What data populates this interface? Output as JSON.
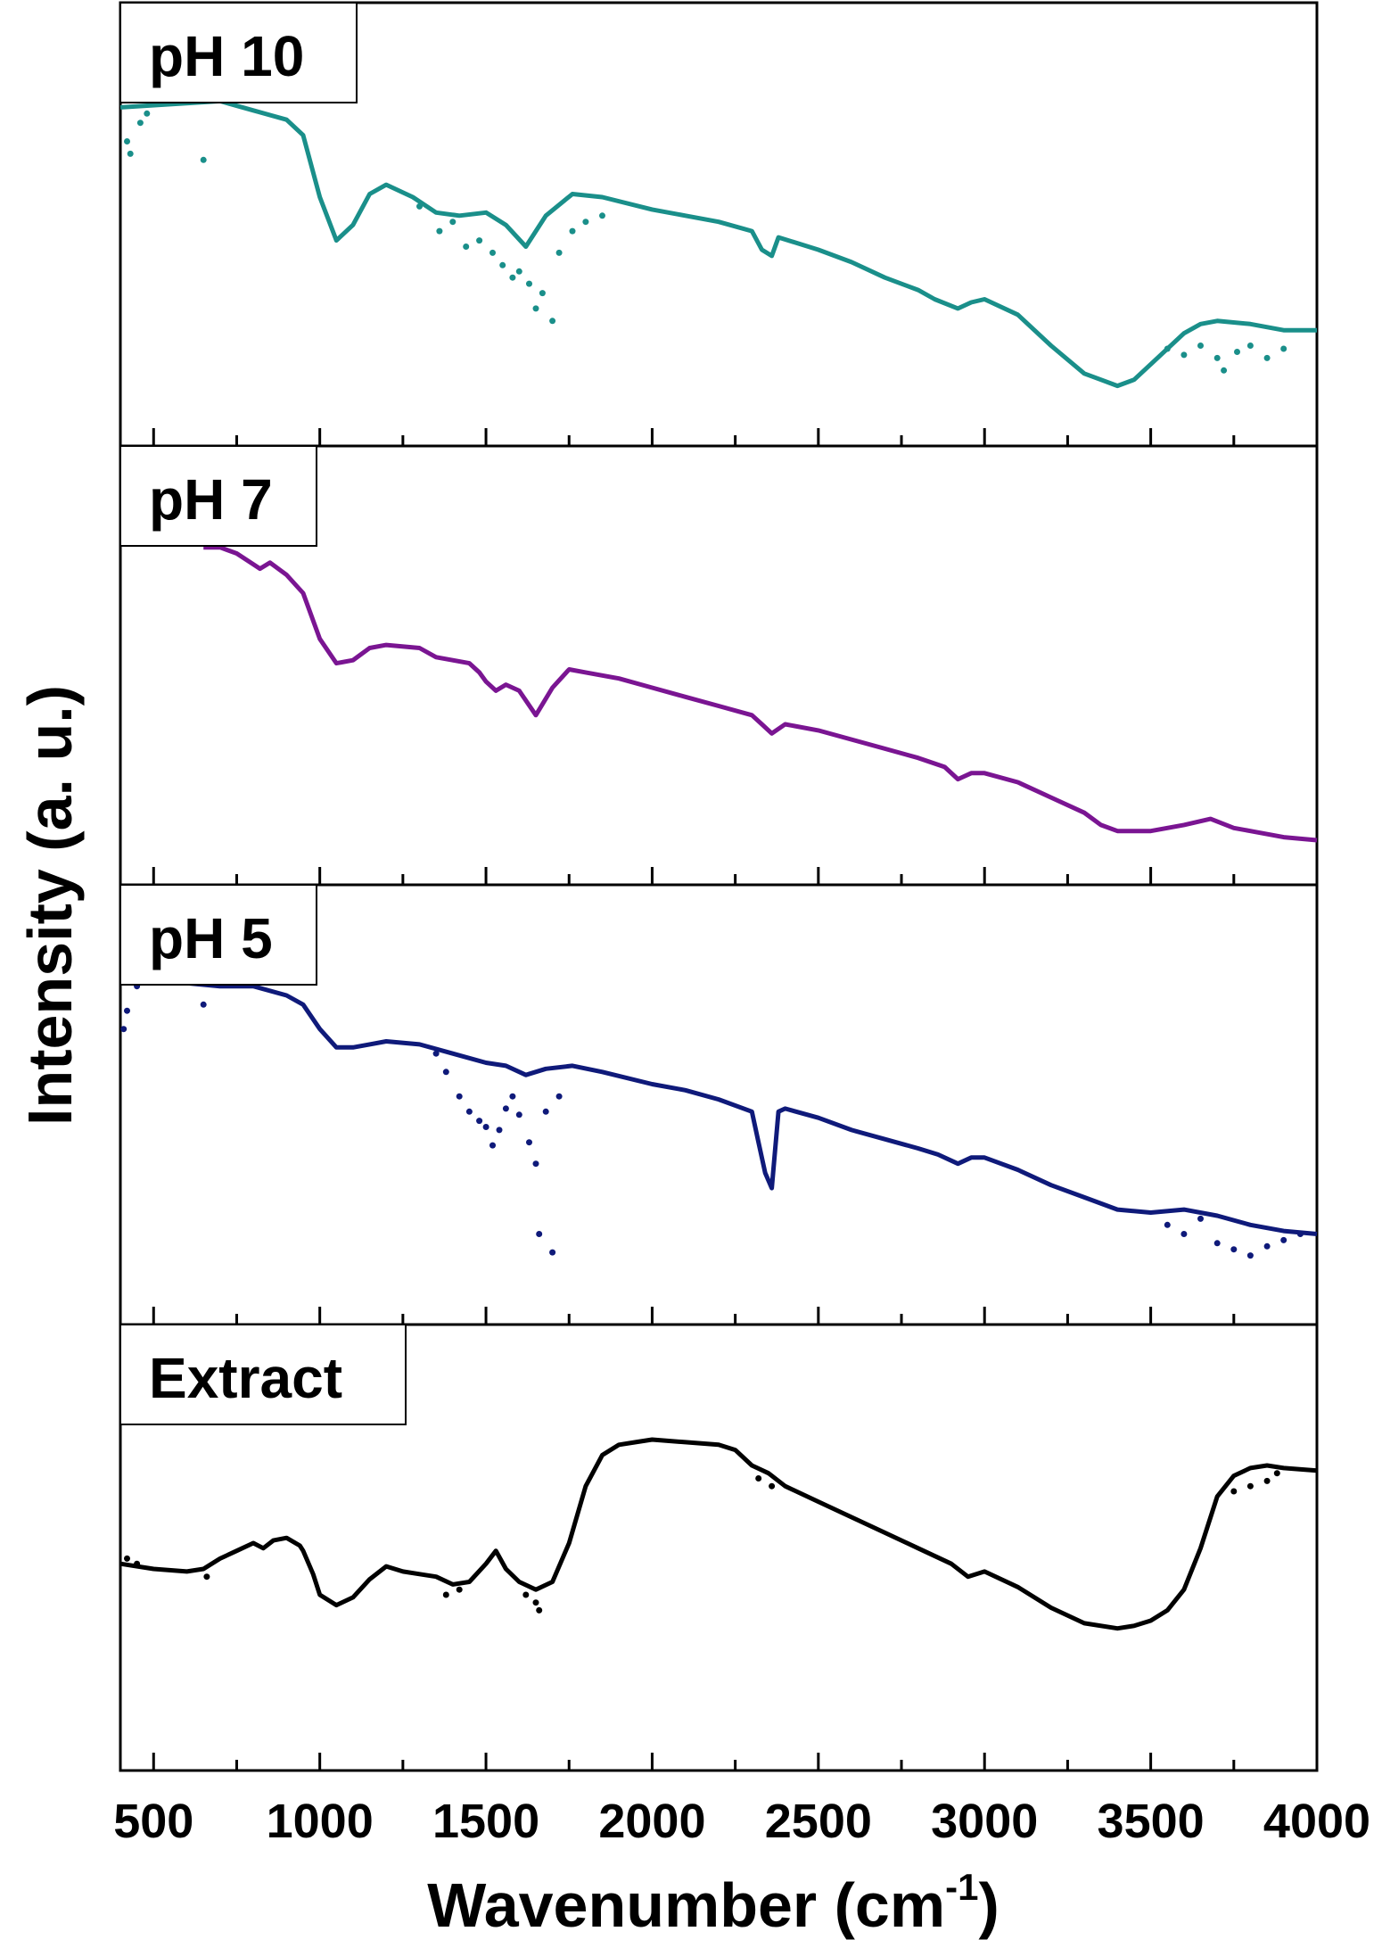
{
  "chart_data": {
    "type": "line",
    "xlabel": "Wavenumber (cm",
    "xlabel_sup": "-1",
    "xlabel_close": ")",
    "ylabel": "Intensity (a. u.)",
    "xlim": [
      400,
      4000
    ],
    "x_ticks": [
      500,
      1000,
      1500,
      2000,
      2500,
      3000,
      3500,
      4000
    ],
    "x_tick_labels": [
      "500",
      "1000",
      "1500",
      "2000",
      "2500",
      "3000",
      "3500",
      "4000"
    ],
    "panels": [
      {
        "name": "pH 10",
        "color": "#1a8f8a",
        "ylim": [
          0,
          100
        ],
        "points": [
          [
            400,
            95
          ],
          [
            550,
            96
          ],
          [
            700,
            97
          ],
          [
            800,
            94
          ],
          [
            900,
            91
          ],
          [
            950,
            86
          ],
          [
            1000,
            66
          ],
          [
            1050,
            52
          ],
          [
            1100,
            57
          ],
          [
            1150,
            67
          ],
          [
            1200,
            70
          ],
          [
            1280,
            66
          ],
          [
            1350,
            61
          ],
          [
            1420,
            60
          ],
          [
            1500,
            61
          ],
          [
            1560,
            57
          ],
          [
            1620,
            50
          ],
          [
            1680,
            60
          ],
          [
            1760,
            67
          ],
          [
            1850,
            66
          ],
          [
            2000,
            62
          ],
          [
            2100,
            60
          ],
          [
            2200,
            58
          ],
          [
            2300,
            55
          ],
          [
            2330,
            49
          ],
          [
            2360,
            47
          ],
          [
            2380,
            53
          ],
          [
            2500,
            49
          ],
          [
            2600,
            45
          ],
          [
            2700,
            40
          ],
          [
            2800,
            36
          ],
          [
            2850,
            33
          ],
          [
            2920,
            30
          ],
          [
            2960,
            32
          ],
          [
            3000,
            33
          ],
          [
            3100,
            28
          ],
          [
            3200,
            18
          ],
          [
            3300,
            9
          ],
          [
            3350,
            7
          ],
          [
            3400,
            5
          ],
          [
            3450,
            7
          ],
          [
            3500,
            12
          ],
          [
            3600,
            22
          ],
          [
            3650,
            25
          ],
          [
            3700,
            26
          ],
          [
            3800,
            25
          ],
          [
            3900,
            23
          ],
          [
            4000,
            23
          ]
        ],
        "scatter": [
          [
            420,
            84
          ],
          [
            430,
            80
          ],
          [
            460,
            90
          ],
          [
            480,
            93
          ],
          [
            650,
            78
          ],
          [
            1300,
            63
          ],
          [
            1360,
            55
          ],
          [
            1400,
            58
          ],
          [
            1440,
            50
          ],
          [
            1480,
            52
          ],
          [
            1520,
            48
          ],
          [
            1550,
            44
          ],
          [
            1580,
            40
          ],
          [
            1600,
            42
          ],
          [
            1630,
            38
          ],
          [
            1650,
            30
          ],
          [
            1670,
            35
          ],
          [
            1700,
            26
          ],
          [
            1720,
            48
          ],
          [
            1760,
            55
          ],
          [
            1800,
            58
          ],
          [
            1850,
            60
          ],
          [
            3550,
            17
          ],
          [
            3600,
            15
          ],
          [
            3650,
            18
          ],
          [
            3700,
            14
          ],
          [
            3720,
            10
          ],
          [
            3760,
            16
          ],
          [
            3800,
            18
          ],
          [
            3850,
            14
          ],
          [
            3900,
            17
          ]
        ]
      },
      {
        "name": "pH 7",
        "color": "#7a1592",
        "ylim": [
          0,
          100
        ],
        "points": [
          [
            650,
            96
          ],
          [
            700,
            96
          ],
          [
            750,
            94
          ],
          [
            820,
            89
          ],
          [
            850,
            91
          ],
          [
            900,
            87
          ],
          [
            950,
            81
          ],
          [
            1000,
            66
          ],
          [
            1050,
            58
          ],
          [
            1100,
            59
          ],
          [
            1150,
            63
          ],
          [
            1200,
            64
          ],
          [
            1300,
            63
          ],
          [
            1350,
            60
          ],
          [
            1400,
            59
          ],
          [
            1450,
            58
          ],
          [
            1480,
            55
          ],
          [
            1500,
            52
          ],
          [
            1530,
            49
          ],
          [
            1560,
            51
          ],
          [
            1600,
            49
          ],
          [
            1650,
            41
          ],
          [
            1700,
            50
          ],
          [
            1750,
            56
          ],
          [
            1800,
            55
          ],
          [
            1900,
            53
          ],
          [
            2000,
            50
          ],
          [
            2100,
            47
          ],
          [
            2200,
            44
          ],
          [
            2300,
            41
          ],
          [
            2330,
            38
          ],
          [
            2360,
            35
          ],
          [
            2400,
            38
          ],
          [
            2500,
            36
          ],
          [
            2600,
            33
          ],
          [
            2700,
            30
          ],
          [
            2800,
            27
          ],
          [
            2880,
            24
          ],
          [
            2920,
            20
          ],
          [
            2960,
            22
          ],
          [
            3000,
            22
          ],
          [
            3100,
            19
          ],
          [
            3200,
            14
          ],
          [
            3300,
            9
          ],
          [
            3350,
            5
          ],
          [
            3400,
            3
          ],
          [
            3500,
            3
          ],
          [
            3600,
            5
          ],
          [
            3680,
            7
          ],
          [
            3750,
            4
          ],
          [
            3800,
            3
          ],
          [
            3900,
            1
          ],
          [
            4000,
            0
          ]
        ],
        "scatter": []
      },
      {
        "name": "pH 5",
        "color": "#0f1a7a",
        "ylim": [
          0,
          100
        ],
        "points": [
          [
            400,
            97
          ],
          [
            500,
            98
          ],
          [
            600,
            97
          ],
          [
            700,
            96
          ],
          [
            800,
            96
          ],
          [
            900,
            93
          ],
          [
            950,
            90
          ],
          [
            1000,
            82
          ],
          [
            1050,
            76
          ],
          [
            1100,
            76
          ],
          [
            1150,
            77
          ],
          [
            1200,
            78
          ],
          [
            1300,
            77
          ],
          [
            1400,
            74
          ],
          [
            1500,
            71
          ],
          [
            1560,
            70
          ],
          [
            1620,
            67
          ],
          [
            1680,
            69
          ],
          [
            1760,
            70
          ],
          [
            1850,
            68
          ],
          [
            2000,
            64
          ],
          [
            2100,
            62
          ],
          [
            2200,
            59
          ],
          [
            2300,
            55
          ],
          [
            2320,
            45
          ],
          [
            2340,
            35
          ],
          [
            2360,
            30
          ],
          [
            2380,
            55
          ],
          [
            2400,
            56
          ],
          [
            2500,
            53
          ],
          [
            2600,
            49
          ],
          [
            2700,
            46
          ],
          [
            2800,
            43
          ],
          [
            2860,
            41
          ],
          [
            2920,
            38
          ],
          [
            2960,
            40
          ],
          [
            3000,
            40
          ],
          [
            3100,
            36
          ],
          [
            3200,
            31
          ],
          [
            3300,
            27
          ],
          [
            3400,
            23
          ],
          [
            3500,
            22
          ],
          [
            3600,
            23
          ],
          [
            3700,
            21
          ],
          [
            3800,
            18
          ],
          [
            3900,
            16
          ],
          [
            4000,
            15
          ]
        ],
        "scatter": [
          [
            410,
            82
          ],
          [
            420,
            88
          ],
          [
            450,
            96
          ],
          [
            650,
            90
          ],
          [
            1350,
            74
          ],
          [
            1380,
            68
          ],
          [
            1420,
            60
          ],
          [
            1450,
            55
          ],
          [
            1480,
            52
          ],
          [
            1500,
            50
          ],
          [
            1520,
            44
          ],
          [
            1540,
            49
          ],
          [
            1560,
            56
          ],
          [
            1580,
            60
          ],
          [
            1600,
            54
          ],
          [
            1630,
            45
          ],
          [
            1650,
            38
          ],
          [
            1660,
            15
          ],
          [
            1680,
            55
          ],
          [
            1700,
            9
          ],
          [
            1720,
            60
          ],
          [
            3550,
            18
          ],
          [
            3600,
            15
          ],
          [
            3650,
            20
          ],
          [
            3700,
            12
          ],
          [
            3750,
            10
          ],
          [
            3800,
            8
          ],
          [
            3850,
            11
          ],
          [
            3900,
            13
          ],
          [
            3950,
            15
          ]
        ]
      },
      {
        "name": "Extract",
        "color": "#000000",
        "ylim": [
          0,
          100
        ],
        "points": [
          [
            400,
            42
          ],
          [
            500,
            40
          ],
          [
            600,
            39
          ],
          [
            650,
            40
          ],
          [
            700,
            44
          ],
          [
            750,
            47
          ],
          [
            800,
            50
          ],
          [
            830,
            48
          ],
          [
            860,
            51
          ],
          [
            900,
            52
          ],
          [
            940,
            49
          ],
          [
            950,
            47
          ],
          [
            980,
            38
          ],
          [
            1000,
            30
          ],
          [
            1050,
            26
          ],
          [
            1100,
            29
          ],
          [
            1150,
            36
          ],
          [
            1200,
            41
          ],
          [
            1250,
            39
          ],
          [
            1300,
            38
          ],
          [
            1350,
            37
          ],
          [
            1400,
            34
          ],
          [
            1450,
            35
          ],
          [
            1500,
            42
          ],
          [
            1530,
            47
          ],
          [
            1560,
            40
          ],
          [
            1600,
            35
          ],
          [
            1650,
            32
          ],
          [
            1700,
            35
          ],
          [
            1750,
            50
          ],
          [
            1800,
            72
          ],
          [
            1850,
            84
          ],
          [
            1900,
            88
          ],
          [
            1950,
            89
          ],
          [
            2000,
            90
          ],
          [
            2100,
            89
          ],
          [
            2200,
            88
          ],
          [
            2250,
            86
          ],
          [
            2300,
            80
          ],
          [
            2350,
            77
          ],
          [
            2400,
            72
          ],
          [
            2500,
            66
          ],
          [
            2600,
            60
          ],
          [
            2700,
            54
          ],
          [
            2800,
            48
          ],
          [
            2900,
            42
          ],
          [
            2950,
            37
          ],
          [
            3000,
            39
          ],
          [
            3100,
            33
          ],
          [
            3200,
            25
          ],
          [
            3300,
            19
          ],
          [
            3400,
            17
          ],
          [
            3450,
            18
          ],
          [
            3500,
            20
          ],
          [
            3550,
            24
          ],
          [
            3600,
            32
          ],
          [
            3650,
            48
          ],
          [
            3700,
            68
          ],
          [
            3750,
            76
          ],
          [
            3800,
            79
          ],
          [
            3850,
            80
          ],
          [
            3900,
            79
          ],
          [
            4000,
            78
          ]
        ],
        "scatter": [
          [
            420,
            44
          ],
          [
            450,
            42
          ],
          [
            660,
            37
          ],
          [
            1380,
            30
          ],
          [
            1420,
            32
          ],
          [
            1620,
            30
          ],
          [
            1650,
            27
          ],
          [
            1660,
            24
          ],
          [
            2320,
            75
          ],
          [
            2360,
            72
          ],
          [
            3750,
            70
          ],
          [
            3800,
            72
          ],
          [
            3850,
            74
          ],
          [
            3880,
            77
          ]
        ]
      }
    ]
  }
}
